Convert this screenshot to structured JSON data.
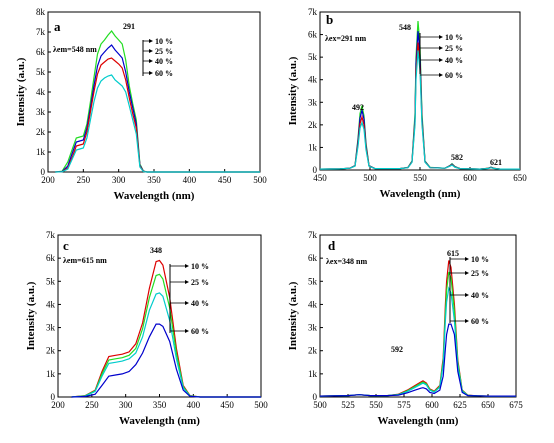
{
  "chart_data": [
    {
      "type": "line",
      "panel": "a",
      "annotation": "λem=548 nm",
      "xlabel": "Wavelength (nm)",
      "ylabel": "Intensity (a.u.)",
      "xlim": [
        200,
        500
      ],
      "ylim": [
        0,
        8000
      ],
      "xticks": [
        "200",
        "250",
        "300",
        "350",
        "400",
        "450",
        "500"
      ],
      "yticks": [
        "0",
        "1k",
        "2k",
        "3k",
        "4k",
        "5k",
        "6k",
        "7k",
        "8k"
      ],
      "peak_labels": [
        "291"
      ],
      "series": [
        {
          "name": "10 %",
          "color": "#22dd22",
          "x": [
            210,
            220,
            228,
            235,
            240,
            245,
            250,
            255,
            260,
            265,
            270,
            275,
            280,
            285,
            290,
            295,
            300,
            305,
            310,
            315,
            320,
            325,
            330,
            335,
            340,
            350,
            380,
            420,
            460,
            500
          ],
          "y": [
            0,
            40,
            500,
            1200,
            1700,
            1750,
            1800,
            2400,
            3500,
            4700,
            5900,
            6400,
            6600,
            6850,
            7050,
            6800,
            6600,
            6400,
            5600,
            4300,
            3400,
            2600,
            400,
            50,
            0,
            0,
            0,
            0,
            0,
            0
          ]
        },
        {
          "name": "25 %",
          "color": "#0000cc",
          "x": [
            210,
            220,
            228,
            235,
            240,
            245,
            250,
            255,
            260,
            265,
            270,
            275,
            280,
            285,
            290,
            295,
            300,
            305,
            310,
            315,
            320,
            325,
            330,
            335,
            340,
            350,
            380,
            420,
            460,
            500
          ],
          "y": [
            0,
            20,
            300,
            1000,
            1500,
            1550,
            1600,
            2200,
            3200,
            4300,
            5300,
            5800,
            6000,
            6200,
            6350,
            6100,
            5900,
            5700,
            5000,
            4000,
            3200,
            2400,
            350,
            40,
            0,
            0,
            0,
            0,
            0,
            0
          ]
        },
        {
          "name": "40 %",
          "color": "#dd0000",
          "x": [
            210,
            220,
            228,
            235,
            240,
            245,
            250,
            255,
            260,
            265,
            270,
            275,
            280,
            285,
            290,
            295,
            300,
            305,
            310,
            315,
            320,
            325,
            330,
            335,
            340,
            350,
            380,
            420,
            460,
            500
          ],
          "y": [
            0,
            10,
            200,
            800,
            1300,
            1350,
            1400,
            2000,
            3000,
            4000,
            4900,
            5350,
            5500,
            5650,
            5700,
            5550,
            5400,
            5200,
            4600,
            3700,
            2900,
            2200,
            300,
            30,
            0,
            0,
            0,
            0,
            0,
            0
          ]
        },
        {
          "name": "60 %",
          "color": "#00cccc",
          "x": [
            210,
            220,
            228,
            235,
            240,
            245,
            250,
            255,
            260,
            265,
            270,
            275,
            280,
            285,
            290,
            295,
            300,
            305,
            310,
            315,
            320,
            325,
            330,
            335,
            340,
            350,
            380,
            420,
            460,
            500
          ],
          "y": [
            0,
            10,
            150,
            700,
            1100,
            1150,
            1200,
            1700,
            2600,
            3500,
            4200,
            4550,
            4700,
            4800,
            4850,
            4600,
            4450,
            4300,
            4000,
            3300,
            2600,
            1900,
            250,
            20,
            0,
            0,
            0,
            0,
            0,
            0
          ]
        }
      ]
    },
    {
      "type": "line",
      "panel": "b",
      "annotation": "λex=291 nm",
      "xlabel": "Wavelength (nm)",
      "ylabel": "Intensity (a.u.)",
      "xlim": [
        450,
        650
      ],
      "ylim": [
        0,
        7000
      ],
      "xticks": [
        "450",
        "500",
        "550",
        "600",
        "650"
      ],
      "yticks": [
        "0",
        "1k",
        "2k",
        "3k",
        "4k",
        "5k",
        "6k",
        "7k"
      ],
      "peak_labels": [
        "492",
        "548",
        "582",
        "621"
      ],
      "series": [
        {
          "name": "10 %",
          "color": "#22dd22",
          "x": [
            450,
            470,
            480,
            485,
            488,
            490,
            492,
            494,
            496,
            499,
            505,
            530,
            538,
            542,
            545,
            546,
            548,
            550,
            552,
            555,
            560,
            575,
            580,
            582,
            585,
            590,
            610,
            618,
            621,
            624,
            630,
            650
          ],
          "y": [
            40,
            50,
            80,
            200,
            1400,
            2500,
            2850,
            2400,
            1200,
            200,
            60,
            60,
            120,
            400,
            2500,
            5000,
            6600,
            5500,
            2500,
            400,
            120,
            80,
            200,
            280,
            150,
            60,
            40,
            80,
            130,
            80,
            40,
            40
          ]
        },
        {
          "name": "25 %",
          "color": "#0000cc",
          "x": [
            450,
            470,
            480,
            485,
            488,
            490,
            492,
            494,
            496,
            499,
            505,
            530,
            538,
            542,
            545,
            546,
            548,
            550,
            552,
            555,
            560,
            575,
            580,
            582,
            585,
            590,
            610,
            618,
            621,
            624,
            630,
            650
          ],
          "y": [
            40,
            50,
            80,
            190,
            1300,
            2300,
            2650,
            2250,
            1100,
            190,
            60,
            60,
            110,
            380,
            2300,
            4700,
            6150,
            5100,
            2300,
            380,
            110,
            80,
            190,
            260,
            140,
            60,
            40,
            75,
            120,
            75,
            40,
            40
          ]
        },
        {
          "name": "40 %",
          "color": "#dd0000",
          "x": [
            450,
            470,
            480,
            485,
            488,
            490,
            492,
            494,
            496,
            499,
            505,
            530,
            538,
            542,
            545,
            546,
            548,
            550,
            552,
            555,
            560,
            575,
            580,
            582,
            585,
            590,
            610,
            618,
            621,
            624,
            630,
            650
          ],
          "y": [
            40,
            50,
            80,
            180,
            1150,
            2050,
            2350,
            2000,
            1000,
            180,
            60,
            60,
            105,
            360,
            2150,
            4300,
            5650,
            4700,
            2150,
            360,
            105,
            80,
            180,
            240,
            130,
            60,
            40,
            70,
            110,
            70,
            40,
            40
          ]
        },
        {
          "name": "60 %",
          "color": "#00cccc",
          "x": [
            450,
            470,
            480,
            485,
            488,
            490,
            492,
            494,
            496,
            499,
            505,
            530,
            538,
            542,
            545,
            546,
            548,
            550,
            552,
            555,
            560,
            575,
            580,
            582,
            585,
            590,
            610,
            618,
            621,
            624,
            630,
            650
          ],
          "y": [
            40,
            50,
            80,
            170,
            1050,
            1850,
            2100,
            1800,
            900,
            170,
            60,
            60,
            100,
            340,
            2000,
            4000,
            5300,
            4400,
            2000,
            340,
            100,
            80,
            170,
            220,
            120,
            60,
            40,
            65,
            100,
            65,
            40,
            40
          ]
        }
      ]
    },
    {
      "type": "line",
      "panel": "c",
      "annotation": "λem=615 nm",
      "xlabel": "Wavelength (nm)",
      "ylabel": "Intensity (a.u.)",
      "xlim": [
        200,
        500
      ],
      "ylim": [
        0,
        7000
      ],
      "xticks": [
        "200",
        "250",
        "300",
        "350",
        "400",
        "450",
        "500"
      ],
      "yticks": [
        "0",
        "1k",
        "2k",
        "3k",
        "4k",
        "5k",
        "6k",
        "7k"
      ],
      "peak_labels": [
        "348"
      ],
      "series": [
        {
          "name": "10 %",
          "color": "#dd0000",
          "x": [
            220,
            240,
            255,
            265,
            275,
            285,
            295,
            305,
            315,
            325,
            335,
            345,
            350,
            355,
            365,
            375,
            385,
            395,
            410,
            440,
            500
          ],
          "y": [
            0,
            60,
            300,
            1100,
            1750,
            1800,
            1850,
            1950,
            2300,
            3200,
            4700,
            5850,
            5900,
            5700,
            4300,
            2100,
            500,
            60,
            0,
            0,
            0
          ]
        },
        {
          "name": "25 %",
          "color": "#22dd22",
          "x": [
            220,
            240,
            255,
            265,
            275,
            285,
            295,
            305,
            315,
            325,
            335,
            345,
            350,
            355,
            365,
            375,
            385,
            395,
            410,
            440,
            500
          ],
          "y": [
            0,
            50,
            270,
            1000,
            1600,
            1650,
            1700,
            1800,
            2100,
            2950,
            4300,
            5250,
            5300,
            5100,
            3850,
            1900,
            450,
            50,
            0,
            0,
            0
          ]
        },
        {
          "name": "40 %",
          "color": "#00cccc",
          "x": [
            220,
            240,
            255,
            265,
            275,
            285,
            295,
            305,
            315,
            325,
            335,
            345,
            350,
            355,
            365,
            375,
            385,
            395,
            410,
            440,
            500
          ],
          "y": [
            0,
            40,
            240,
            900,
            1450,
            1500,
            1550,
            1650,
            1900,
            2600,
            3750,
            4450,
            4500,
            4350,
            3300,
            1650,
            400,
            40,
            0,
            0,
            0
          ]
        },
        {
          "name": "60 %",
          "color": "#0000cc",
          "x": [
            220,
            240,
            255,
            265,
            275,
            285,
            295,
            305,
            315,
            325,
            335,
            345,
            350,
            355,
            365,
            375,
            385,
            395,
            410,
            440,
            500
          ],
          "y": [
            0,
            20,
            120,
            500,
            900,
            950,
            1000,
            1100,
            1400,
            1900,
            2600,
            3150,
            3150,
            3050,
            2400,
            1200,
            300,
            30,
            0,
            0,
            0
          ]
        }
      ]
    },
    {
      "type": "line",
      "panel": "d",
      "annotation": "λex=348 nm",
      "xlabel": "Wavelength (nm)",
      "ylabel": "Intensity (a.u.)",
      "xlim": [
        500,
        675
      ],
      "ylim": [
        0,
        7000
      ],
      "xticks": [
        "500",
        "525",
        "550",
        "575",
        "600",
        "625",
        "650",
        "675"
      ],
      "yticks": [
        "0",
        "1k",
        "2k",
        "3k",
        "4k",
        "5k",
        "6k",
        "7k"
      ],
      "peak_labels": [
        "592",
        "615"
      ],
      "series": [
        {
          "name": "10 %",
          "color": "#dd0000",
          "x": [
            500,
            525,
            535,
            545,
            560,
            570,
            578,
            585,
            590,
            592,
            595,
            598,
            602,
            607,
            610,
            612,
            613,
            615,
            617,
            620,
            623,
            627,
            632,
            640,
            650,
            675
          ],
          "y": [
            40,
            60,
            100,
            60,
            60,
            120,
            300,
            500,
            650,
            700,
            600,
            350,
            250,
            500,
            1700,
            4000,
            5000,
            5900,
            5600,
            4000,
            1600,
            300,
            80,
            50,
            40,
            40
          ]
        },
        {
          "name": "25 %",
          "color": "#22dd22",
          "x": [
            500,
            525,
            535,
            545,
            560,
            570,
            578,
            585,
            590,
            592,
            595,
            598,
            602,
            607,
            610,
            612,
            613,
            615,
            617,
            620,
            623,
            627,
            632,
            640,
            650,
            675
          ],
          "y": [
            40,
            60,
            100,
            60,
            60,
            110,
            270,
            460,
            600,
            650,
            560,
            320,
            230,
            460,
            1550,
            3650,
            4600,
            5400,
            5150,
            3700,
            1500,
            280,
            75,
            50,
            40,
            40
          ]
        },
        {
          "name": "40 %",
          "color": "#00cccc",
          "x": [
            500,
            525,
            535,
            545,
            560,
            570,
            578,
            585,
            590,
            592,
            595,
            598,
            602,
            607,
            610,
            612,
            613,
            615,
            617,
            620,
            623,
            627,
            632,
            640,
            650,
            675
          ],
          "y": [
            40,
            60,
            100,
            60,
            60,
            100,
            240,
            420,
            550,
            600,
            520,
            290,
            210,
            420,
            1400,
            3300,
            4100,
            4700,
            4500,
            3300,
            1350,
            250,
            70,
            50,
            40,
            40
          ]
        },
        {
          "name": "60 %",
          "color": "#0000cc",
          "x": [
            500,
            525,
            535,
            545,
            560,
            570,
            578,
            585,
            590,
            592,
            595,
            598,
            602,
            607,
            610,
            612,
            613,
            615,
            617,
            620,
            623,
            627,
            632,
            640,
            650,
            675
          ],
          "y": [
            40,
            60,
            100,
            60,
            60,
            80,
            180,
            300,
            380,
            400,
            350,
            200,
            150,
            300,
            900,
            2100,
            2700,
            3150,
            3150,
            2700,
            1100,
            200,
            60,
            50,
            40,
            40
          ]
        }
      ]
    }
  ]
}
